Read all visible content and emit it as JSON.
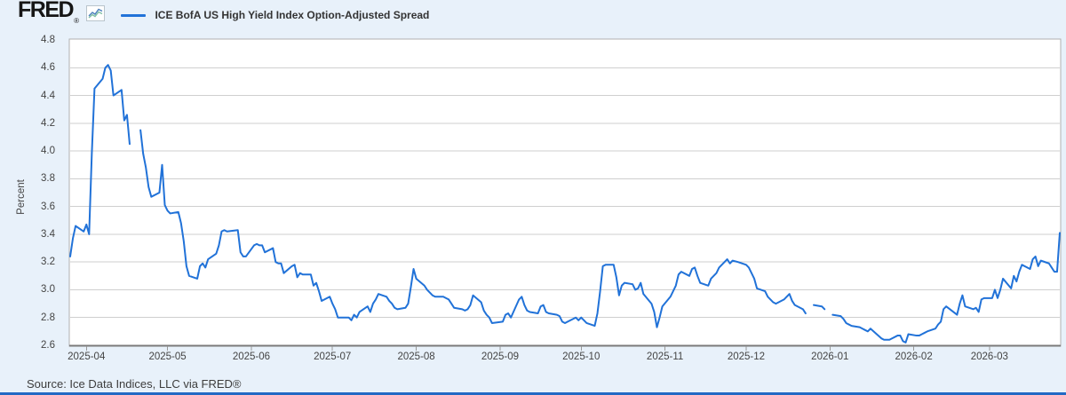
{
  "header": {
    "logo_text": "FRED",
    "registered_mark": "®",
    "legend_label": "ICE BofA US High Yield Index Option-Adjusted Spread"
  },
  "source_line": "Source: Ice Data Indices, LLC via FRED®",
  "colors": {
    "line": "#2172d8",
    "page_background": "#e8f1fa",
    "plot_background": "#ffffff",
    "plot_border": "#b0b0b0",
    "axis_line": "#7a7a7a",
    "gridline": "#cfcfcf",
    "tick": "#999999",
    "axis_text": "#444444",
    "legend_text": "#333333",
    "bottom_bar": "#2269c4",
    "spark_icon_blue": "#4a7ebb",
    "spark_icon_teal": "#7fbfa3"
  },
  "chart_data": {
    "type": "line",
    "title": "ICE BofA US High Yield Index Option-Adjusted Spread",
    "ylabel": "Percent",
    "ylim": [
      2.6,
      4.8
    ],
    "yticks": [
      "4.8",
      "4.6",
      "4.4",
      "4.2",
      "4.0",
      "3.8",
      "3.6",
      "3.4",
      "3.2",
      "3.0",
      "2.8",
      "2.6"
    ],
    "grid": "horizontal",
    "legend_position": "top-left",
    "x_range": [
      "2025-03-26",
      "2026-03-27"
    ],
    "xticks": [
      {
        "date": "2025-04-01",
        "label": "2025-04"
      },
      {
        "date": "2025-05-01",
        "label": "2025-05"
      },
      {
        "date": "2025-06-01",
        "label": "2025-06"
      },
      {
        "date": "2025-07-01",
        "label": "2025-07"
      },
      {
        "date": "2025-08-01",
        "label": "2025-08"
      },
      {
        "date": "2025-09-01",
        "label": "2025-09"
      },
      {
        "date": "2025-10-01",
        "label": "2025-10"
      },
      {
        "date": "2025-11-01",
        "label": "2025-11"
      },
      {
        "date": "2025-12-01",
        "label": "2025-12"
      },
      {
        "date": "2026-01-01",
        "label": "2026-01"
      },
      {
        "date": "2026-02-01",
        "label": "2026-02"
      },
      {
        "date": "2026-03-01",
        "label": "2026-03"
      }
    ],
    "points": [
      [
        "2025-03-26",
        3.24
      ],
      [
        "2025-03-27",
        3.37
      ],
      [
        "2025-03-28",
        3.46
      ],
      [
        "2025-03-31",
        3.42
      ],
      [
        "2025-04-01",
        3.47
      ],
      [
        "2025-04-02",
        3.4
      ],
      [
        "2025-04-03",
        3.98
      ],
      [
        "2025-04-04",
        4.45
      ],
      [
        "2025-04-07",
        4.52
      ],
      [
        "2025-04-08",
        4.6
      ],
      [
        "2025-04-09",
        4.62
      ],
      [
        "2025-04-10",
        4.58
      ],
      [
        "2025-04-11",
        4.4
      ],
      [
        "2025-04-14",
        4.44
      ],
      [
        "2025-04-15",
        4.22
      ],
      [
        "2025-04-16",
        4.26
      ],
      [
        "2025-04-17",
        4.05
      ],
      [
        "2025-04-18",
        null
      ],
      [
        "2025-04-21",
        4.15
      ],
      [
        "2025-04-22",
        3.98
      ],
      [
        "2025-04-23",
        3.88
      ],
      [
        "2025-04-24",
        3.74
      ],
      [
        "2025-04-25",
        3.67
      ],
      [
        "2025-04-28",
        3.7
      ],
      [
        "2025-04-29",
        3.9
      ],
      [
        "2025-04-30",
        3.61
      ],
      [
        "2025-05-01",
        3.57
      ],
      [
        "2025-05-02",
        3.55
      ],
      [
        "2025-05-05",
        3.56
      ],
      [
        "2025-05-06",
        3.48
      ],
      [
        "2025-05-07",
        3.35
      ],
      [
        "2025-05-08",
        3.17
      ],
      [
        "2025-05-09",
        3.1
      ],
      [
        "2025-05-12",
        3.08
      ],
      [
        "2025-05-13",
        3.17
      ],
      [
        "2025-05-14",
        3.19
      ],
      [
        "2025-05-15",
        3.16
      ],
      [
        "2025-05-16",
        3.22
      ],
      [
        "2025-05-19",
        3.26
      ],
      [
        "2025-05-20",
        3.32
      ],
      [
        "2025-05-21",
        3.42
      ],
      [
        "2025-05-22",
        3.43
      ],
      [
        "2025-05-23",
        3.42
      ],
      [
        "2025-05-27",
        3.43
      ],
      [
        "2025-05-28",
        3.27
      ],
      [
        "2025-05-29",
        3.24
      ],
      [
        "2025-05-30",
        3.24
      ],
      [
        "2025-06-02",
        3.32
      ],
      [
        "2025-06-03",
        3.33
      ],
      [
        "2025-06-04",
        3.32
      ],
      [
        "2025-06-05",
        3.32
      ],
      [
        "2025-06-06",
        3.27
      ],
      [
        "2025-06-09",
        3.3
      ],
      [
        "2025-06-10",
        3.2
      ],
      [
        "2025-06-11",
        3.19
      ],
      [
        "2025-06-12",
        3.19
      ],
      [
        "2025-06-13",
        3.12
      ],
      [
        "2025-06-16",
        3.17
      ],
      [
        "2025-06-17",
        3.18
      ],
      [
        "2025-06-18",
        3.09
      ],
      [
        "2025-06-19",
        3.12
      ],
      [
        "2025-06-20",
        3.11
      ],
      [
        "2025-06-23",
        3.11
      ],
      [
        "2025-06-24",
        3.03
      ],
      [
        "2025-06-25",
        3.05
      ],
      [
        "2025-06-26",
        2.99
      ],
      [
        "2025-06-27",
        2.92
      ],
      [
        "2025-06-30",
        2.95
      ],
      [
        "2025-07-01",
        2.9
      ],
      [
        "2025-07-02",
        2.86
      ],
      [
        "2025-07-03",
        2.8
      ],
      [
        "2025-07-07",
        2.8
      ],
      [
        "2025-07-08",
        2.78
      ],
      [
        "2025-07-09",
        2.82
      ],
      [
        "2025-07-10",
        2.8
      ],
      [
        "2025-07-11",
        2.84
      ],
      [
        "2025-07-14",
        2.88
      ],
      [
        "2025-07-15",
        2.84
      ],
      [
        "2025-07-16",
        2.9
      ],
      [
        "2025-07-17",
        2.93
      ],
      [
        "2025-07-18",
        2.97
      ],
      [
        "2025-07-21",
        2.95
      ],
      [
        "2025-07-22",
        2.92
      ],
      [
        "2025-07-23",
        2.9
      ],
      [
        "2025-07-24",
        2.87
      ],
      [
        "2025-07-25",
        2.86
      ],
      [
        "2025-07-28",
        2.87
      ],
      [
        "2025-07-29",
        2.9
      ],
      [
        "2025-07-30",
        3.02
      ],
      [
        "2025-07-31",
        3.15
      ],
      [
        "2025-08-01",
        3.08
      ],
      [
        "2025-08-04",
        3.03
      ],
      [
        "2025-08-05",
        3.0
      ],
      [
        "2025-08-06",
        2.98
      ],
      [
        "2025-08-07",
        2.96
      ],
      [
        "2025-08-08",
        2.95
      ],
      [
        "2025-08-11",
        2.95
      ],
      [
        "2025-08-12",
        2.94
      ],
      [
        "2025-08-13",
        2.93
      ],
      [
        "2025-08-14",
        2.9
      ],
      [
        "2025-08-15",
        2.87
      ],
      [
        "2025-08-18",
        2.86
      ],
      [
        "2025-08-19",
        2.85
      ],
      [
        "2025-08-20",
        2.86
      ],
      [
        "2025-08-21",
        2.89
      ],
      [
        "2025-08-22",
        2.96
      ],
      [
        "2025-08-25",
        2.91
      ],
      [
        "2025-08-26",
        2.85
      ],
      [
        "2025-08-27",
        2.82
      ],
      [
        "2025-08-28",
        2.8
      ],
      [
        "2025-08-29",
        2.76
      ],
      [
        "2025-09-02",
        2.77
      ],
      [
        "2025-09-03",
        2.82
      ],
      [
        "2025-09-04",
        2.83
      ],
      [
        "2025-09-05",
        2.8
      ],
      [
        "2025-09-08",
        2.93
      ],
      [
        "2025-09-09",
        2.95
      ],
      [
        "2025-09-10",
        2.89
      ],
      [
        "2025-09-11",
        2.85
      ],
      [
        "2025-09-12",
        2.84
      ],
      [
        "2025-09-15",
        2.83
      ],
      [
        "2025-09-16",
        2.88
      ],
      [
        "2025-09-17",
        2.89
      ],
      [
        "2025-09-18",
        2.84
      ],
      [
        "2025-09-19",
        2.83
      ],
      [
        "2025-09-22",
        2.82
      ],
      [
        "2025-09-23",
        2.81
      ],
      [
        "2025-09-24",
        2.77
      ],
      [
        "2025-09-25",
        2.76
      ],
      [
        "2025-09-26",
        2.77
      ],
      [
        "2025-09-29",
        2.8
      ],
      [
        "2025-09-30",
        2.78
      ],
      [
        "2025-10-01",
        2.8
      ],
      [
        "2025-10-02",
        2.78
      ],
      [
        "2025-10-03",
        2.76
      ],
      [
        "2025-10-06",
        2.74
      ],
      [
        "2025-10-07",
        2.83
      ],
      [
        "2025-10-08",
        2.99
      ],
      [
        "2025-10-09",
        3.17
      ],
      [
        "2025-10-10",
        3.18
      ],
      [
        "2025-10-13",
        3.18
      ],
      [
        "2025-10-14",
        3.09
      ],
      [
        "2025-10-15",
        2.96
      ],
      [
        "2025-10-16",
        3.03
      ],
      [
        "2025-10-17",
        3.05
      ],
      [
        "2025-10-20",
        3.04
      ],
      [
        "2025-10-21",
        3.0
      ],
      [
        "2025-10-22",
        3.01
      ],
      [
        "2025-10-23",
        3.05
      ],
      [
        "2025-10-24",
        2.97
      ],
      [
        "2025-10-27",
        2.9
      ],
      [
        "2025-10-28",
        2.84
      ],
      [
        "2025-10-29",
        2.73
      ],
      [
        "2025-10-30",
        2.8
      ],
      [
        "2025-10-31",
        2.88
      ],
      [
        "2025-11-03",
        2.95
      ],
      [
        "2025-11-04",
        2.99
      ],
      [
        "2025-11-05",
        3.03
      ],
      [
        "2025-11-06",
        3.11
      ],
      [
        "2025-11-07",
        3.13
      ],
      [
        "2025-11-10",
        3.1
      ],
      [
        "2025-11-11",
        3.15
      ],
      [
        "2025-11-12",
        3.16
      ],
      [
        "2025-11-13",
        3.1
      ],
      [
        "2025-11-14",
        3.05
      ],
      [
        "2025-11-17",
        3.03
      ],
      [
        "2025-11-18",
        3.08
      ],
      [
        "2025-11-19",
        3.1
      ],
      [
        "2025-11-20",
        3.12
      ],
      [
        "2025-11-21",
        3.16
      ],
      [
        "2025-11-24",
        3.22
      ],
      [
        "2025-11-25",
        3.19
      ],
      [
        "2025-11-26",
        3.21
      ],
      [
        "2025-11-28",
        3.2
      ],
      [
        "2025-12-01",
        3.18
      ],
      [
        "2025-12-02",
        3.16
      ],
      [
        "2025-12-03",
        3.12
      ],
      [
        "2025-12-04",
        3.08
      ],
      [
        "2025-12-05",
        3.01
      ],
      [
        "2025-12-08",
        2.99
      ],
      [
        "2025-12-09",
        2.95
      ],
      [
        "2025-12-10",
        2.93
      ],
      [
        "2025-12-11",
        2.91
      ],
      [
        "2025-12-12",
        2.9
      ],
      [
        "2025-12-15",
        2.93
      ],
      [
        "2025-12-16",
        2.95
      ],
      [
        "2025-12-17",
        2.97
      ],
      [
        "2025-12-18",
        2.92
      ],
      [
        "2025-12-19",
        2.89
      ],
      [
        "2025-12-22",
        2.86
      ],
      [
        "2025-12-23",
        2.83
      ],
      [
        "2025-12-24",
        null
      ],
      [
        "2025-12-26",
        2.89
      ],
      [
        "2025-12-29",
        2.88
      ],
      [
        "2025-12-30",
        2.86
      ],
      [
        "2025-12-31",
        null
      ],
      [
        "2026-01-02",
        2.82
      ],
      [
        "2026-01-05",
        2.81
      ],
      [
        "2026-01-06",
        2.79
      ],
      [
        "2026-01-07",
        2.76
      ],
      [
        "2026-01-08",
        2.75
      ],
      [
        "2026-01-09",
        2.74
      ],
      [
        "2026-01-12",
        2.73
      ],
      [
        "2026-01-13",
        2.72
      ],
      [
        "2026-01-14",
        2.71
      ],
      [
        "2026-01-15",
        2.7
      ],
      [
        "2026-01-16",
        2.72
      ],
      [
        "2026-01-20",
        2.65
      ],
      [
        "2026-01-21",
        2.64
      ],
      [
        "2026-01-22",
        2.64
      ],
      [
        "2026-01-23",
        2.64
      ],
      [
        "2026-01-26",
        2.67
      ],
      [
        "2026-01-27",
        2.67
      ],
      [
        "2026-01-28",
        2.63
      ],
      [
        "2026-01-29",
        2.62
      ],
      [
        "2026-01-30",
        2.68
      ],
      [
        "2026-02-02",
        2.67
      ],
      [
        "2026-02-03",
        2.67
      ],
      [
        "2026-02-04",
        2.68
      ],
      [
        "2026-02-05",
        2.69
      ],
      [
        "2026-02-06",
        2.7
      ],
      [
        "2026-02-09",
        2.72
      ],
      [
        "2026-02-10",
        2.75
      ],
      [
        "2026-02-11",
        2.77
      ],
      [
        "2026-02-12",
        2.86
      ],
      [
        "2026-02-13",
        2.88
      ],
      [
        "2026-02-17",
        2.82
      ],
      [
        "2026-02-18",
        2.9
      ],
      [
        "2026-02-19",
        2.96
      ],
      [
        "2026-02-20",
        2.88
      ],
      [
        "2026-02-23",
        2.86
      ],
      [
        "2026-02-24",
        2.87
      ],
      [
        "2026-02-25",
        2.84
      ],
      [
        "2026-02-26",
        2.93
      ],
      [
        "2026-02-27",
        2.94
      ],
      [
        "2026-03-02",
        2.94
      ],
      [
        "2026-03-03",
        3.0
      ],
      [
        "2026-03-04",
        2.94
      ],
      [
        "2026-03-05",
        3.0
      ],
      [
        "2026-03-06",
        3.08
      ],
      [
        "2026-03-09",
        3.01
      ],
      [
        "2026-03-10",
        3.1
      ],
      [
        "2026-03-11",
        3.06
      ],
      [
        "2026-03-12",
        3.13
      ],
      [
        "2026-03-13",
        3.18
      ],
      [
        "2026-03-16",
        3.15
      ],
      [
        "2026-03-17",
        3.22
      ],
      [
        "2026-03-18",
        3.24
      ],
      [
        "2026-03-19",
        3.17
      ],
      [
        "2026-03-20",
        3.21
      ],
      [
        "2026-03-23",
        3.19
      ],
      [
        "2026-03-24",
        3.16
      ],
      [
        "2026-03-25",
        3.13
      ],
      [
        "2026-03-26",
        3.13
      ],
      [
        "2026-03-27",
        3.41
      ]
    ]
  }
}
